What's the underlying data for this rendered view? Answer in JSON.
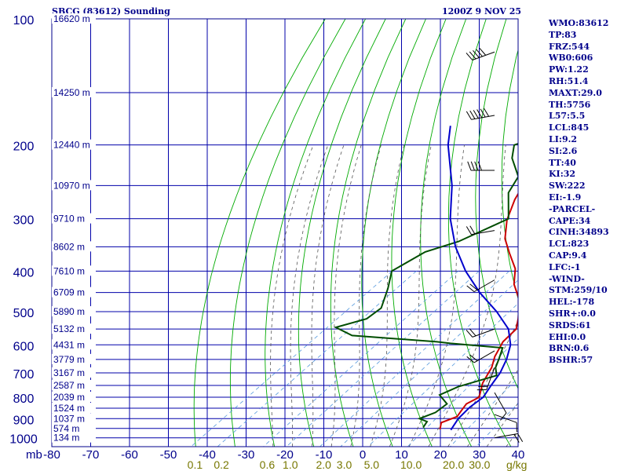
{
  "chart_data": {
    "type": "line",
    "title": "SBCG (83612) Sounding",
    "subtitle": "1200Z  9 NOV 25",
    "pressure_unit_label": "mb",
    "mixing_ratio_unit_label": "g/kg",
    "pressure_levels": [
      100,
      200,
      300,
      400,
      500,
      600,
      700,
      800,
      900,
      1000
    ],
    "pressure_range": [
      100,
      1050
    ],
    "temperature_ticks": [
      -80,
      -70,
      -60,
      -50,
      -40,
      -30,
      -20,
      -10,
      0,
      10,
      20,
      30,
      40
    ],
    "temperature_range": [
      -80,
      40
    ],
    "mixing_ratio_ticks": [
      "0.1",
      "0.2",
      "0.6",
      "1.0",
      "2.0",
      "3.0",
      "5.0",
      "10.0",
      "20.0",
      "30.0"
    ],
    "height_labels": [
      {
        "label": "16620 m",
        "pressure": 100
      },
      {
        "label": "14250 m",
        "pressure": 150
      },
      {
        "label": "12440 m",
        "pressure": 200
      },
      {
        "label": "10970 m",
        "pressure": 250
      },
      {
        "label": "9710 m",
        "pressure": 300
      },
      {
        "label": "8602 m",
        "pressure": 350
      },
      {
        "label": "7610 m",
        "pressure": 400
      },
      {
        "label": "6709 m",
        "pressure": 450
      },
      {
        "label": "5890 m",
        "pressure": 500
      },
      {
        "label": "5132 m",
        "pressure": 550
      },
      {
        "label": "4431 m",
        "pressure": 600
      },
      {
        "label": "3779 m",
        "pressure": 650
      },
      {
        "label": "3167 m",
        "pressure": 700
      },
      {
        "label": "2587 m",
        "pressure": 750
      },
      {
        "label": "2039 m",
        "pressure": 800
      },
      {
        "label": "1524 m",
        "pressure": 850
      },
      {
        "label": "1037 m",
        "pressure": 900
      },
      {
        "label": "574 m",
        "pressure": 950
      },
      {
        "label": "134 m",
        "pressure": 1000
      }
    ],
    "series": [
      {
        "key": "temperature",
        "color": "#cc0000",
        "points": [
          [
            -77,
            103
          ],
          [
            -76,
            118
          ],
          [
            -73,
            130
          ],
          [
            -68,
            150
          ],
          [
            -60,
            175
          ],
          [
            -55,
            198
          ],
          [
            -51,
            225
          ],
          [
            -46,
            248
          ],
          [
            -43,
            270
          ],
          [
            -38,
            302
          ],
          [
            -32,
            335
          ],
          [
            -26,
            362
          ],
          [
            -19,
            395
          ],
          [
            -14,
            430
          ],
          [
            -7,
            470
          ],
          [
            -1,
            520
          ],
          [
            2,
            550
          ],
          [
            3,
            590
          ],
          [
            6,
            640
          ],
          [
            9,
            680
          ],
          [
            10,
            700
          ],
          [
            12,
            740
          ],
          [
            14,
            770
          ],
          [
            16,
            800
          ],
          [
            15,
            830
          ],
          [
            16,
            860
          ],
          [
            17,
            890
          ],
          [
            15,
            920
          ],
          [
            17,
            955
          ]
        ]
      },
      {
        "key": "dewpoint",
        "color": "#004d00",
        "points": [
          [
            -80,
            108
          ],
          [
            -75,
            125
          ],
          [
            -70,
            150
          ],
          [
            -65,
            175
          ],
          [
            -58,
            190
          ],
          [
            -62,
            200
          ],
          [
            -58,
            215
          ],
          [
            -50,
            238
          ],
          [
            -47,
            260
          ],
          [
            -38,
            300
          ],
          [
            -43,
            340
          ],
          [
            -48,
            360
          ],
          [
            -50,
            400
          ],
          [
            -45,
            440
          ],
          [
            -40,
            490
          ],
          [
            -40,
            520
          ],
          [
            -45,
            545
          ],
          [
            -38,
            570
          ],
          [
            -14,
            590
          ],
          [
            -10,
            595
          ],
          [
            5,
            610
          ],
          [
            8,
            650
          ],
          [
            10,
            680
          ],
          [
            13,
            710
          ],
          [
            7,
            755
          ],
          [
            5,
            790
          ],
          [
            10,
            830
          ],
          [
            10,
            870
          ],
          [
            8,
            900
          ],
          [
            11,
            915
          ],
          [
            12,
            945
          ]
        ]
      },
      {
        "key": "parcel",
        "color": "#0000cc",
        "points": [
          [
            -85,
            180
          ],
          [
            -79,
            200
          ],
          [
            -64,
            250
          ],
          [
            -53,
            300
          ],
          [
            -42,
            350
          ],
          [
            -31,
            400
          ],
          [
            -20,
            450
          ],
          [
            -9,
            500
          ],
          [
            0,
            550
          ],
          [
            6,
            600
          ],
          [
            10,
            650
          ],
          [
            13,
            700
          ],
          [
            15,
            750
          ],
          [
            17,
            800
          ],
          [
            17,
            845
          ],
          [
            18,
            900
          ],
          [
            20,
            958
          ]
        ]
      }
    ],
    "winds": [
      {
        "pressure": 120,
        "speed": 45,
        "dir": 250
      },
      {
        "pressure": 170,
        "speed": 60,
        "dir": 260
      },
      {
        "pressure": 230,
        "speed": 40,
        "dir": 270
      },
      {
        "pressure": 320,
        "speed": 20,
        "dir": 260
      },
      {
        "pressure": 420,
        "speed": 15,
        "dir": 240
      },
      {
        "pressure": 550,
        "speed": 20,
        "dir": 250
      },
      {
        "pressure": 620,
        "speed": 20,
        "dir": 240
      },
      {
        "pressure": 680,
        "speed": 15,
        "dir": 200
      },
      {
        "pressure": 780,
        "speed": 10,
        "dir": 150
      },
      {
        "pressure": 880,
        "speed": 10,
        "dir": 110
      },
      {
        "pressure": 1000,
        "speed": 15,
        "dir": 80
      }
    ],
    "stats": [
      "WMO:83612",
      "TP:83",
      "FRZ:544",
      "WB0:606",
      "PW:1.22",
      "RH:51.4",
      "MAXT:29.0",
      "TH:5756",
      "L57:5.5",
      "LCL:845",
      "LI:9.2",
      "SI:2.6",
      "TT:40",
      "KI:32",
      "SW:222",
      "EI:-1.9",
      "-PARCEL-",
      "CAPE:34",
      "CINH:34893",
      "LCL:823",
      "CAP:9.4",
      "LFC:-1",
      "-WIND-",
      "STM:259/10",
      "HEL:-178",
      "SHR+:0.0",
      "SRDS:61",
      "EHI:0.0",
      "BRN:0.6",
      "BSHR:57"
    ],
    "colors": {
      "frame": "#00008b",
      "grid": "#0000aa",
      "dry_adiabat": "#00aa00",
      "moist_adiabat": "#555555",
      "mixing_ratio": "#5599dd",
      "label": "#00008b",
      "mixing_ratio_label": "#777700"
    }
  }
}
